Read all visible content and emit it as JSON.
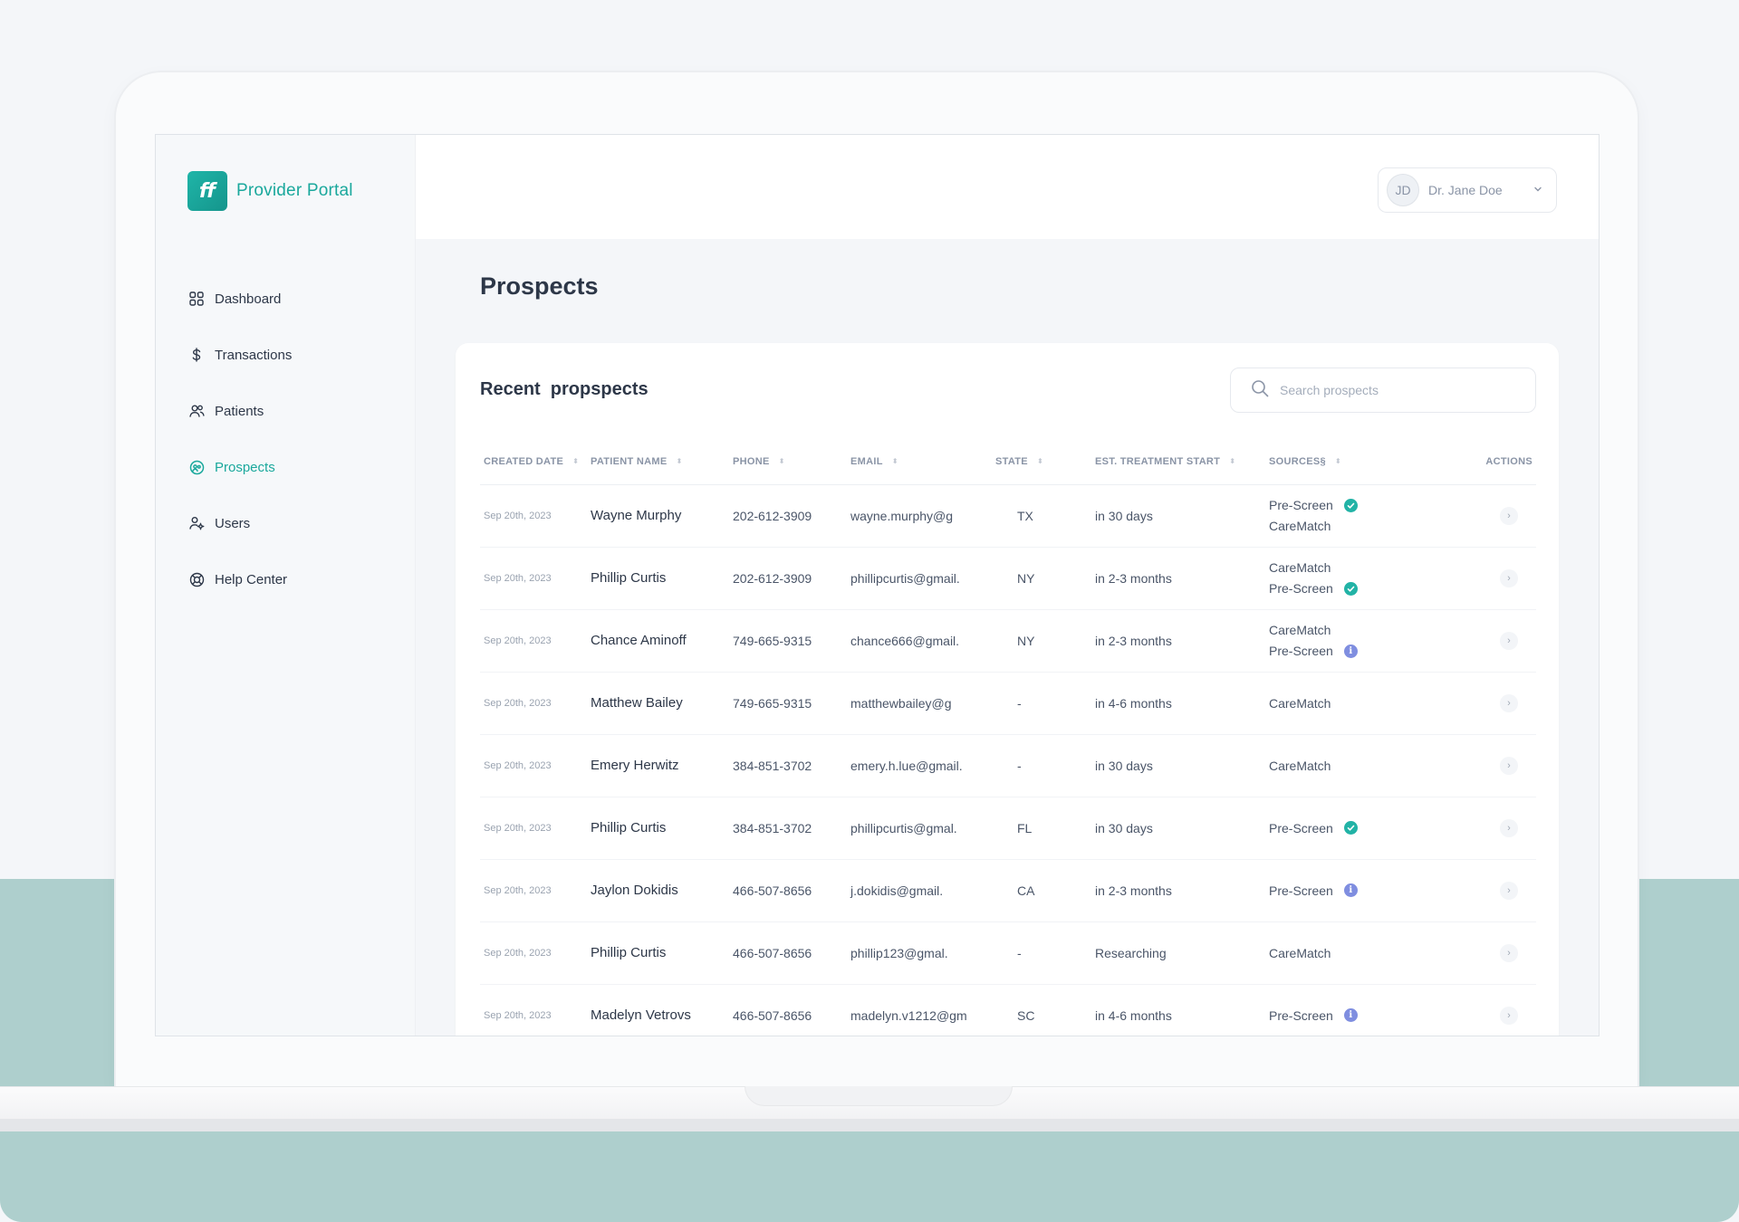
{
  "app": {
    "brand_logo": "ff",
    "brand_name": "Provider Portal"
  },
  "sidebar": {
    "items": [
      {
        "label": "Dashboard",
        "icon": "grid-icon",
        "active": false
      },
      {
        "label": "Transactions",
        "icon": "dollar-icon",
        "active": false
      },
      {
        "label": "Patients",
        "icon": "patients-icon",
        "active": false
      },
      {
        "label": "Prospects",
        "icon": "prospects-icon",
        "active": true
      },
      {
        "label": "Users",
        "icon": "users-icon",
        "active": false
      },
      {
        "label": "Help Center",
        "icon": "lifebuoy-icon",
        "active": false
      }
    ]
  },
  "header": {
    "user_initials": "JD",
    "user_name": "Dr. Jane Doe"
  },
  "main": {
    "page_title": "Prospects",
    "card_title": "Recent  propspects",
    "search_placeholder": "Search prospects",
    "columns": [
      "CREATED DATE",
      "PATIENT NAME",
      "PHONE",
      "EMAIL",
      "STATE",
      "EST. TREATMENT START",
      "SOURCES§",
      "ACTIONS"
    ],
    "rows": [
      {
        "date": "Sep 20th, 2023",
        "name": "Wayne Murphy",
        "phone": "202-612-3909",
        "email": "wayne.murphy@g",
        "state": "TX",
        "start": "in 30 days",
        "sources": [
          {
            "label": "Pre-Screen",
            "badge": "check"
          },
          {
            "label": "CareMatch",
            "badge": ""
          }
        ]
      },
      {
        "date": "Sep 20th, 2023",
        "name": "Phillip Curtis",
        "phone": "202-612-3909",
        "email": "phillipcurtis@gmail.",
        "state": "NY",
        "start": "in 2-3 months",
        "sources": [
          {
            "label": "CareMatch",
            "badge": ""
          },
          {
            "label": "Pre-Screen",
            "badge": "check"
          }
        ]
      },
      {
        "date": "Sep 20th, 2023",
        "name": "Chance Aminoff",
        "phone": "749-665-9315",
        "email": "chance666@gmail.",
        "state": "NY",
        "start": "in 2-3 months",
        "sources": [
          {
            "label": "CareMatch",
            "badge": ""
          },
          {
            "label": "Pre-Screen",
            "badge": "info"
          }
        ]
      },
      {
        "date": "Sep 20th, 2023",
        "name": "Matthew Bailey",
        "phone": "749-665-9315",
        "email": "matthewbailey@g",
        "state": "-",
        "start": "in 4-6 months",
        "sources": [
          {
            "label": "CareMatch",
            "badge": ""
          }
        ]
      },
      {
        "date": "Sep 20th, 2023",
        "name": "Emery Herwitz",
        "phone": "384-851-3702",
        "email": "emery.h.lue@gmail.",
        "state": "-",
        "start": "in 30 days",
        "sources": [
          {
            "label": "CareMatch",
            "badge": ""
          }
        ]
      },
      {
        "date": "Sep 20th, 2023",
        "name": "Phillip Curtis",
        "phone": "384-851-3702",
        "email": "phillipcurtis@gmal.",
        "state": "FL",
        "start": "in 30 days",
        "sources": [
          {
            "label": "Pre-Screen",
            "badge": "check"
          }
        ]
      },
      {
        "date": "Sep 20th, 2023",
        "name": "Jaylon Dokidis",
        "phone": "466-507-8656",
        "email": "j.dokidis@gmail.",
        "state": "CA",
        "start": "in 2-3 months",
        "sources": [
          {
            "label": "Pre-Screen",
            "badge": "info"
          }
        ]
      },
      {
        "date": "Sep 20th, 2023",
        "name": "Phillip Curtis",
        "phone": "466-507-8656",
        "email": "phillip123@gmal.",
        "state": "-",
        "start": "Researching",
        "sources": [
          {
            "label": "CareMatch",
            "badge": ""
          }
        ]
      },
      {
        "date": "Sep 20th, 2023",
        "name": "Madelyn Vetrovs",
        "phone": "466-507-8656",
        "email": "madelyn.v1212@gm",
        "state": "SC",
        "start": "in 4-6 months",
        "sources": [
          {
            "label": "Pre-Screen",
            "badge": "info"
          }
        ]
      }
    ],
    "row_action_glyph": "›"
  },
  "colors": {
    "accent": "#1aa89c",
    "check_badge": "#22b3a6",
    "info_badge": "#7f8ee0",
    "backdrop_teal": "#aecfcd"
  }
}
